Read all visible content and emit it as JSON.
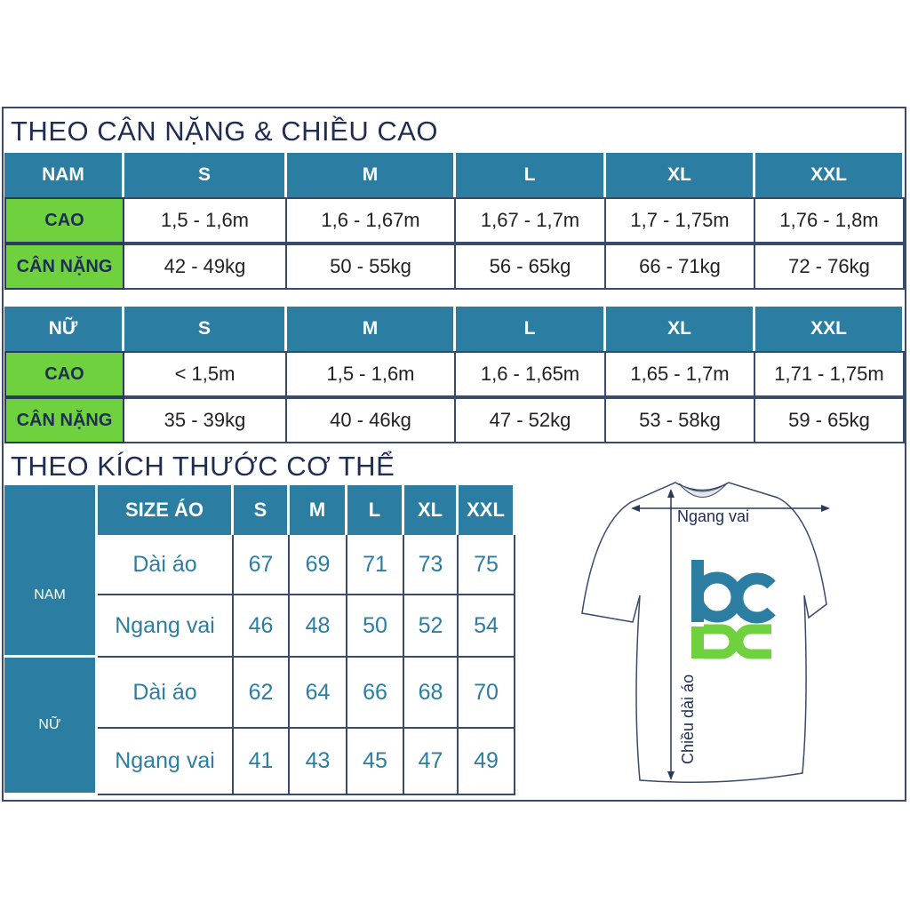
{
  "weight_height": {
    "title": "THEO CÂN NẶNG & CHIỀU CAO",
    "sizes": [
      "S",
      "M",
      "L",
      "XL",
      "XXL"
    ],
    "row_labels": {
      "height": "CAO",
      "weight": "CÂN NẶNG"
    },
    "male": {
      "label": "NAM",
      "height": [
        "1,5 - 1,6m",
        "1,6 - 1,67m",
        "1,67 - 1,7m",
        "1,7 - 1,75m",
        "1,76 - 1,8m"
      ],
      "weight": [
        "42 - 49kg",
        "50 - 55kg",
        "56 - 65kg",
        "66 - 71kg",
        "72 - 76kg"
      ]
    },
    "female": {
      "label": "NỮ",
      "height": [
        "< 1,5m",
        "1,5 - 1,6m",
        "1,6 - 1,65m",
        "1,65 - 1,7m",
        "1,71 - 1,75m"
      ],
      "weight": [
        "35 - 39kg",
        "40 - 46kg",
        "47 - 52kg",
        "53 - 58kg",
        "59 - 65kg"
      ]
    }
  },
  "body_size": {
    "title": "THEO KÍCH THƯỚC CƠ THỂ",
    "header": "SIZE ÁO",
    "sizes": [
      "S",
      "M",
      "L",
      "XL",
      "XXL"
    ],
    "groups": [
      {
        "label": "NAM",
        "rows": [
          {
            "name": "Dài áo",
            "values": [
              "67",
              "69",
              "71",
              "73",
              "75"
            ]
          },
          {
            "name": "Ngang vai",
            "values": [
              "46",
              "48",
              "50",
              "52",
              "54"
            ]
          }
        ]
      },
      {
        "label": "NỮ",
        "rows": [
          {
            "name": "Dài áo",
            "values": [
              "62",
              "64",
              "66",
              "68",
              "70"
            ]
          },
          {
            "name": "Ngang vai",
            "values": [
              "41",
              "43",
              "45",
              "47",
              "49"
            ]
          }
        ]
      }
    ]
  },
  "shirt": {
    "width_label": "Ngang vai",
    "length_label": "Chiều dài áo",
    "logo_text": "bcpc"
  },
  "colors": {
    "header": "#2b7ea1",
    "label_green": "#6fd13e",
    "text_navy": "#1f2d52",
    "logo_blue": "#2b7ea1",
    "logo_green": "#6fd13e"
  }
}
